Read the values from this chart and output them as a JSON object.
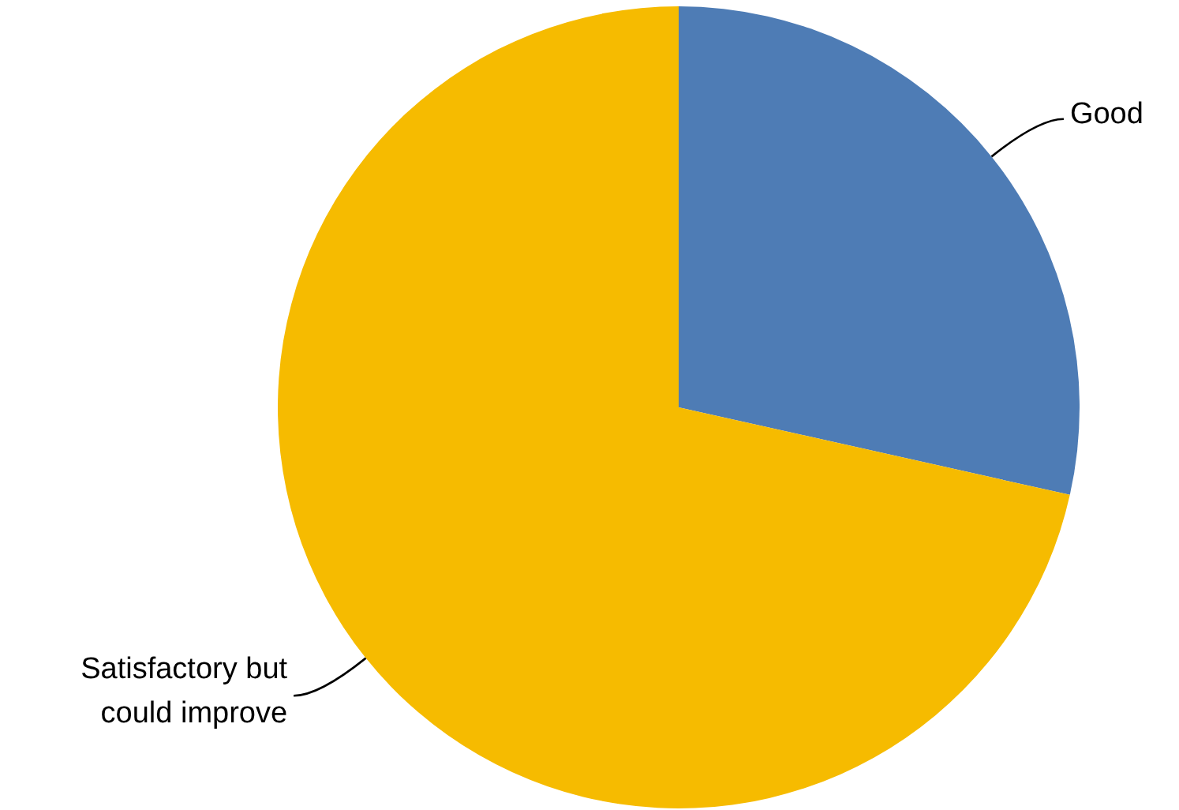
{
  "chart_data": {
    "type": "pie",
    "categories": [
      "Good",
      "Satisfactory but could improve"
    ],
    "values": [
      28.5,
      71.5
    ],
    "colors": [
      "#4e7cb5",
      "#f6bb00"
    ]
  }
}
